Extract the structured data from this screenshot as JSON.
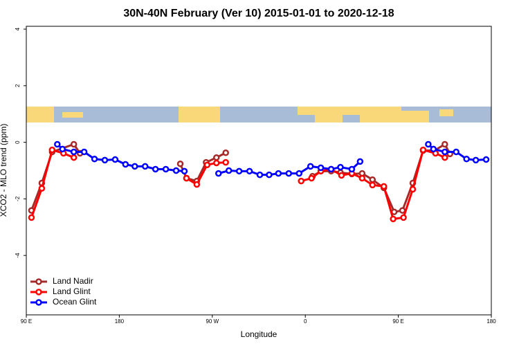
{
  "chart_data": {
    "type": "line",
    "title": "30N-40N February (Ver 10)   2015-01-01 to 2020-12-18",
    "x_label": "Longitude",
    "y_label": "XCO2 - MLO trend (ppm)",
    "xlim": [
      90,
      540
    ],
    "xticks": [
      {
        "value": 90,
        "label": "90 E"
      },
      {
        "value": 180,
        "label": "180"
      },
      {
        "value": 270,
        "label": "90 W"
      },
      {
        "value": 360,
        "label": "0"
      },
      {
        "value": 450,
        "label": "90 E"
      },
      {
        "value": 540,
        "label": "180"
      }
    ],
    "ylim": [
      -6.1,
      4.1
    ],
    "yticks": [
      4,
      2,
      0,
      -2,
      -4
    ],
    "legend": "bottom-left",
    "series": [
      {
        "name": "Land Nadir",
        "color": "#a52a2a",
        "x": [
          95,
          105,
          115,
          136,
          142,
          null,
          239,
          245,
          255,
          264,
          274,
          283,
          null,
          367,
          375,
          385,
          394,
          405,
          415,
          425,
          436,
          446,
          454,
          464,
          474,
          485,
          495,
          500
        ],
        "values": [
          -2.41,
          -1.44,
          -0.34,
          -0.07,
          -0.39,
          null,
          -0.76,
          -1.27,
          -1.37,
          -0.71,
          -0.54,
          -0.37,
          null,
          -1.2,
          -1.02,
          -1.02,
          -1.07,
          -1.12,
          -1.1,
          -1.32,
          -1.61,
          -2.46,
          -2.41,
          -1.44,
          -0.29,
          -0.29,
          -0.07,
          -0.41
        ]
      },
      {
        "name": "Land Glint",
        "color": "#ff0000",
        "x": [
          95,
          105,
          115,
          126,
          136,
          null,
          245,
          255,
          265,
          274,
          283,
          null,
          356,
          366,
          375,
          385,
          395,
          405,
          415,
          425,
          436,
          445,
          455,
          464,
          474,
          486,
          495
        ],
        "values": [
          -2.66,
          -1.63,
          -0.27,
          -0.39,
          -0.54,
          null,
          -1.27,
          -1.49,
          -0.8,
          -0.73,
          -0.71,
          null,
          -1.37,
          -1.27,
          -1.02,
          -0.95,
          -1.17,
          -1.1,
          -1.27,
          -1.51,
          -1.56,
          -2.71,
          -2.66,
          -1.66,
          -0.27,
          -0.39,
          -0.54
        ]
      },
      {
        "name": "Ocean Glint",
        "color": "#0000ff",
        "x": [
          120,
          125,
          136,
          146,
          156,
          166,
          176,
          186,
          195,
          205,
          215,
          225,
          235,
          243,
          null,
          276,
          286,
          296,
          306,
          316,
          325,
          334,
          344,
          354,
          365,
          375,
          385,
          394,
          405,
          413,
          null,
          479,
          484,
          495,
          506,
          516,
          525,
          535
        ],
        "values": [
          -0.07,
          -0.24,
          -0.34,
          -0.34,
          -0.59,
          -0.63,
          -0.61,
          -0.78,
          -0.85,
          -0.85,
          -0.95,
          -0.95,
          -1.0,
          -1.02,
          null,
          -1.1,
          -1.0,
          -1.02,
          -1.02,
          -1.15,
          -1.15,
          -1.1,
          -1.1,
          -1.1,
          -0.85,
          -0.9,
          -0.95,
          -0.88,
          -0.95,
          -0.68,
          null,
          -0.07,
          -0.24,
          -0.34,
          -0.34,
          -0.59,
          -0.63,
          -0.61
        ]
      }
    ]
  }
}
